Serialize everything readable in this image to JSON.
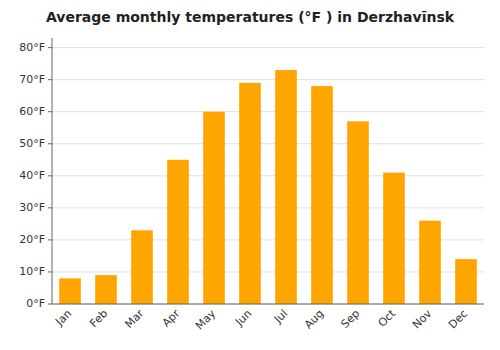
{
  "chart_data": {
    "type": "bar",
    "title": "Average monthly temperatures (°F ) in Derzhavīnsk",
    "categories": [
      "Jan",
      "Feb",
      "Mar",
      "Apr",
      "May",
      "Jun",
      "Jul",
      "Aug",
      "Sep",
      "Oct",
      "Nov",
      "Dec"
    ],
    "values": [
      8,
      9,
      23,
      45,
      60,
      69,
      73,
      68,
      57,
      41,
      26,
      14
    ],
    "color": "#FFA500",
    "ylim": [
      0,
      83
    ],
    "yticks": [
      {
        "value": 0,
        "label": "0°F"
      },
      {
        "value": 10,
        "label": "10°F"
      },
      {
        "value": 20,
        "label": "20°F"
      },
      {
        "value": 30,
        "label": "30°F"
      },
      {
        "value": 40,
        "label": "40°F"
      },
      {
        "value": 50,
        "label": "50°F"
      },
      {
        "value": 60,
        "label": "60°F"
      },
      {
        "value": 70,
        "label": "70°F"
      },
      {
        "value": 80,
        "label": "80°F"
      }
    ],
    "grid": true
  }
}
